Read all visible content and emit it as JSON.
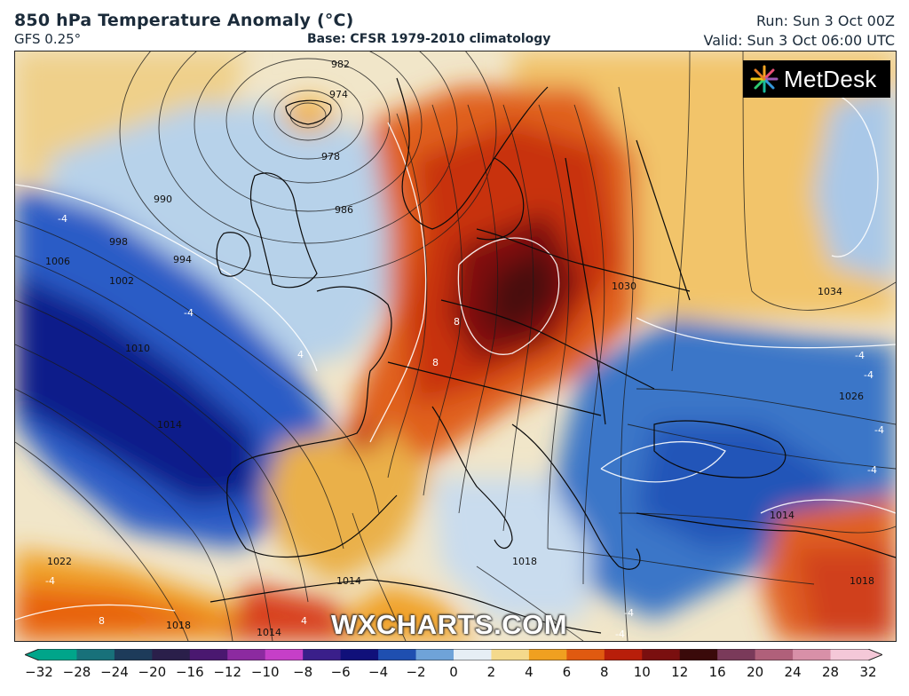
{
  "header": {
    "title": "850 hPa Temperature Anomaly (°C)",
    "model": "GFS 0.25°",
    "base": "Base: CFSR 1979-2010 climatology",
    "run": "Run: Sun 3 Oct 00Z",
    "valid": "Valid: Sun 3 Oct 06:00 UTC"
  },
  "logo": {
    "text": "MetDesk",
    "icon": "metdesk-logo-icon"
  },
  "watermark": "WXCHARTS.COM",
  "colorbar": {
    "ticks": [
      "−32",
      "−28",
      "−24",
      "−20",
      "−16",
      "−12",
      "−10",
      "−8",
      "−6",
      "−4",
      "−2",
      "0",
      "2",
      "4",
      "6",
      "8",
      "10",
      "12",
      "16",
      "20",
      "24",
      "28",
      "32"
    ],
    "colors": [
      "#00a58a",
      "#18717a",
      "#1d3b5a",
      "#2a1f4a",
      "#4a1870",
      "#8c2aa0",
      "#c63fc8",
      "#3a1f8a",
      "#10107a",
      "#1f4fb0",
      "#6fa3d8",
      "#e6eef5",
      "#f4d98c",
      "#f0a020",
      "#e05a10",
      "#b81e0a",
      "#7a0f0f",
      "#3a0a0a",
      "#7a3a5a",
      "#b0607a",
      "#d890a8",
      "#f4c8d8"
    ]
  },
  "map_labels": {
    "isobars": [
      "982",
      "974",
      "978",
      "986",
      "990",
      "994",
      "998",
      "1002",
      "1006",
      "1010",
      "1014",
      "1018",
      "1022",
      "1014",
      "1018",
      "1030",
      "1026",
      "1034",
      "1014",
      "1014",
      "1018"
    ],
    "anomalies": [
      "-4",
      "-4",
      "-4",
      "-4",
      "-4",
      "8",
      "8",
      "4",
      "8",
      "-4",
      "-4",
      "-4",
      "-4",
      "4"
    ]
  }
}
